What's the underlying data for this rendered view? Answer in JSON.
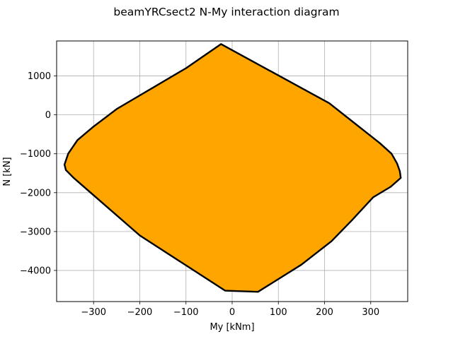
{
  "chart_data": {
    "type": "area",
    "title": "beamYRCsect2 N-My interaction diagram",
    "xlabel": "My [kNm]",
    "ylabel": "N [kN]",
    "xlim": [
      -380,
      380
    ],
    "ylim": [
      -4800,
      1900
    ],
    "xticks": [
      -300,
      -200,
      -100,
      0,
      100,
      200,
      300
    ],
    "yticks": [
      -4000,
      -3000,
      -2000,
      -1000,
      0,
      1000
    ],
    "xtick_labels": [
      "−300",
      "−200",
      "−100",
      "0",
      "100",
      "200",
      "300"
    ],
    "ytick_labels": [
      "−4000",
      "−3000",
      "−2000",
      "−1000",
      "0",
      "1000"
    ],
    "grid": true,
    "fill_color": "#ffa500",
    "edge_color": "#000000",
    "series": [
      {
        "points": [
          [
            -24,
            1820
          ],
          [
            210,
            300
          ],
          [
            320,
            -730
          ],
          [
            345,
            -1000
          ],
          [
            357,
            -1250
          ],
          [
            363,
            -1450
          ],
          [
            365,
            -1620
          ],
          [
            343,
            -1850
          ],
          [
            305,
            -2120
          ],
          [
            260,
            -2700
          ],
          [
            215,
            -3250
          ],
          [
            150,
            -3850
          ],
          [
            56,
            -4550
          ],
          [
            -15,
            -4520
          ],
          [
            -200,
            -3100
          ],
          [
            -343,
            -1620
          ],
          [
            -360,
            -1420
          ],
          [
            -363,
            -1280
          ],
          [
            -355,
            -1000
          ],
          [
            -335,
            -650
          ],
          [
            -300,
            -300
          ],
          [
            -250,
            150
          ],
          [
            -100,
            1200
          ],
          [
            -24,
            1820
          ]
        ]
      }
    ]
  }
}
